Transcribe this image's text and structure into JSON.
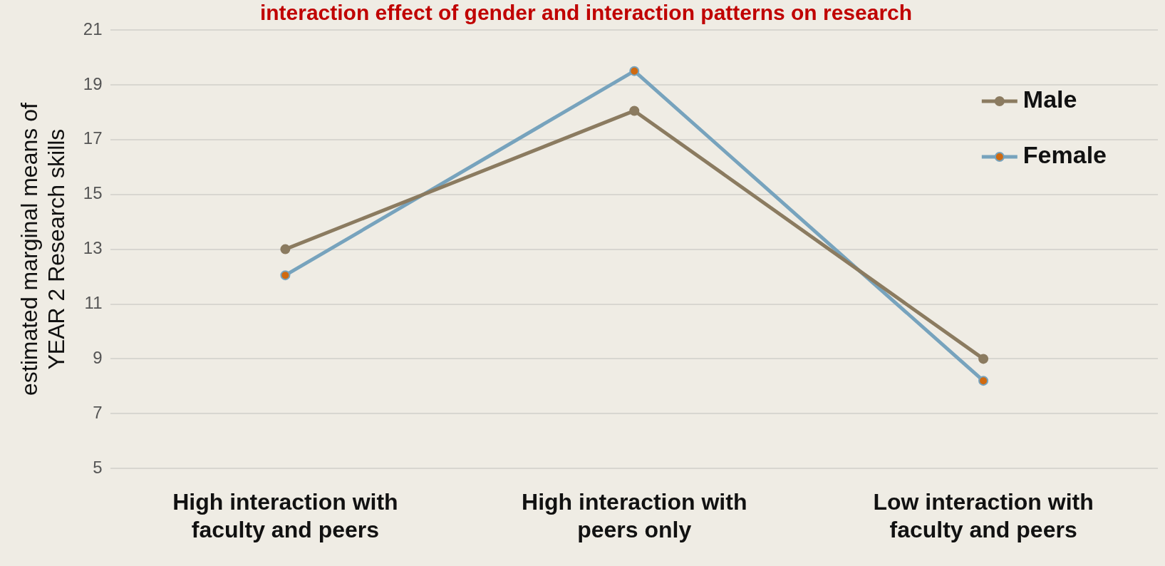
{
  "chart_data": {
    "type": "line",
    "title": "interaction effect of gender and interaction patterns on research",
    "ylabel": "estimated marginal means of YEAR 2 Research skills",
    "categories": [
      "High interaction with faculty and peers",
      "High interaction with peers only",
      "Low interaction with faculty and peers"
    ],
    "series": [
      {
        "name": "Male",
        "color": "#8b7b60",
        "values": [
          13,
          18.05,
          9
        ]
      },
      {
        "name": "Female",
        "color": "#77a3bd",
        "values": [
          12.05,
          19.5,
          8.2
        ]
      }
    ],
    "ylim": [
      5,
      21
    ],
    "yticks": [
      5,
      7,
      9,
      11,
      13,
      15,
      17,
      19,
      21
    ],
    "grid": "y",
    "legend": "top right",
    "marker": "circle",
    "line_style": "solid"
  }
}
